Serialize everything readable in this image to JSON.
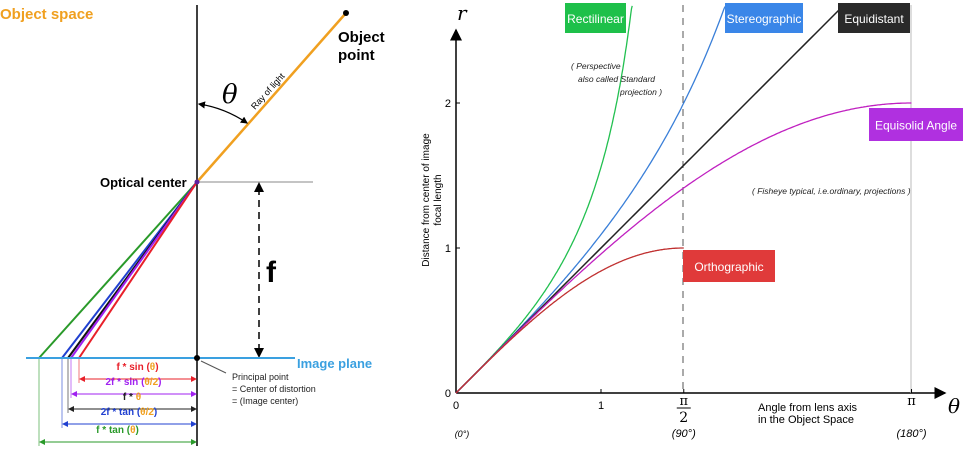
{
  "left": {
    "object_space": "Object space",
    "object_point": [
      "Object",
      "point"
    ],
    "theta": "θ",
    "ray_of_light": "Ray of light",
    "optical_center": "Optical center",
    "f": "f",
    "image_plane": "Image plane",
    "principal_point": [
      "Principal point",
      "= Center of distortion",
      "= (Image center)"
    ],
    "dims": [
      {
        "pre": "f * sin (",
        "arg": "θ",
        "post": ")",
        "color": "#e8202a"
      },
      {
        "pre": "2f * sin (",
        "arg": "θ/2",
        "post": ")",
        "color": "#a020f0"
      },
      {
        "pre": "f * ",
        "arg": "θ",
        "post": "",
        "color": "#222222"
      },
      {
        "pre": "2f * tan (",
        "arg": "θ/2",
        "post": ")",
        "color": "#2040d0"
      },
      {
        "pre": "f * tan (",
        "arg": "θ",
        "post": ")",
        "color": "#2a9a2a"
      }
    ],
    "colors": {
      "orange": "#f0a020",
      "blue_plane": "#3aa0e0"
    }
  },
  "chart_data": {
    "type": "line",
    "xlabel": [
      "Angle from lens axis",
      "in the Object Space"
    ],
    "ylabel": [
      "Distance from center of image",
      "focal length"
    ],
    "x_axis_symbol": "θ",
    "y_axis_symbol": "r",
    "xlim": [
      0,
      3.3
    ],
    "ylim": [
      0,
      2.67
    ],
    "x_ticks": [
      {
        "value": 0,
        "label": "0",
        "deg": "(0°)"
      },
      {
        "value": 1,
        "label": "1",
        "deg": ""
      },
      {
        "value": 1.5708,
        "label_num": "π",
        "label_den": "2",
        "deg": "(90°)"
      },
      {
        "value": 3.1416,
        "label": "π",
        "deg": "(180°)"
      }
    ],
    "y_ticks": [
      {
        "value": 0,
        "label": "0"
      },
      {
        "value": 1,
        "label": "1"
      },
      {
        "value": 2,
        "label": "2"
      }
    ],
    "series": [
      {
        "name": "Rectilinear",
        "formula": "tan(θ)",
        "fn": "rect",
        "color": "#22c050",
        "box": "#1ec04a",
        "xmax": 1.5
      },
      {
        "name": "Stereographic",
        "formula": "2tan(θ/2)",
        "fn": "stereo",
        "color": "#3a7fd8",
        "box": "#3a86e8",
        "xmax": 3.1
      },
      {
        "name": "Equidistant",
        "formula": "θ",
        "fn": "equi",
        "color": "#222222",
        "box": "#2a2a2a",
        "xmax": 3.1416
      },
      {
        "name": "Equisolid Angle",
        "formula": "2sin(θ/2)",
        "fn": "solid",
        "color": "#c020c0",
        "box": "#b030e0",
        "xmax": 3.1416
      },
      {
        "name": "Orthographic",
        "formula": "sin(θ)",
        "fn": "ortho",
        "color": "#c03030",
        "box": "#e03a3a",
        "xmax": 1.5708
      }
    ],
    "notes": {
      "perspective": [
        "( Perspective",
        "also called  Standard",
        "projection )"
      ],
      "fisheye": "( Fisheye typical, i.e.ordinary, projections )"
    }
  }
}
